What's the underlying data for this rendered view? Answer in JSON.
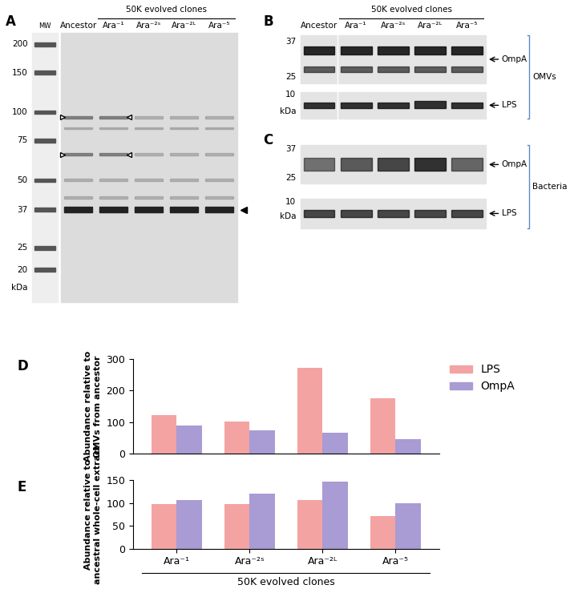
{
  "panels": {
    "A": {
      "panel": "A",
      "mw_label": "MW",
      "mw_markers": [
        200,
        150,
        100,
        75,
        50,
        37,
        25,
        20
      ],
      "unit": "kDa",
      "ancestor": "Ancestor",
      "group": "50K evolved clones",
      "lanes": [
        "Ara⁻¹",
        "Ara⁻²ˢ",
        "Ara⁻²ᴸ",
        "Ara⁻⁵"
      ]
    },
    "B": {
      "panel": "B",
      "ancestor": "Ancestor",
      "group": "50K evolved clones",
      "lanes": [
        "Ara⁻¹",
        "Ara⁻²ˢ",
        "Ara⁻²ᴸ",
        "Ara⁻⁵"
      ],
      "mw_markers": [
        37,
        25,
        10
      ],
      "unit": "kDa",
      "bands": [
        "OmpA",
        "LPS"
      ],
      "fraction": "OMVs"
    },
    "C": {
      "panel": "C",
      "mw_markers": [
        37,
        25,
        10
      ],
      "unit": "kDa",
      "bands": [
        "OmpA",
        "LPS"
      ],
      "fraction": "Bacteria"
    }
  },
  "chart_data": [
    {
      "type": "bar",
      "panel": "D",
      "y_label": "Abundance relative to\nOMVs from ancestor",
      "categories": [
        "Ara⁻¹",
        "Ara⁻²ˢ",
        "Ara⁻²ᴸ",
        "Ara⁻⁵"
      ],
      "series": [
        {
          "name": "LPS",
          "color": "#f4a3a3",
          "values": [
            122,
            101,
            272,
            175
          ]
        },
        {
          "name": "OmpA",
          "color": "#a99bd3",
          "values": [
            90,
            74,
            65,
            45
          ]
        }
      ],
      "ylim": [
        0,
        300
      ],
      "yticks": [
        0,
        100,
        200,
        300
      ],
      "legend": "upper right",
      "tick_labels": "y"
    },
    {
      "type": "bar",
      "panel": "E",
      "y_label": "Abundance relative to\nancestral whole-cell extract",
      "x_label": "50K evolved clones",
      "categories": [
        "Ara⁻¹",
        "Ara⁻²ˢ",
        "Ara⁻²ᴸ",
        "Ara⁻⁵"
      ],
      "series": [
        {
          "name": "LPS",
          "color": "#f4a3a3",
          "values": [
            98,
            97,
            106,
            72
          ]
        },
        {
          "name": "OmpA",
          "color": "#a99bd3",
          "values": [
            106,
            120,
            148,
            99
          ]
        }
      ],
      "ylim": [
        0,
        150
      ],
      "yticks": [
        0,
        50,
        100,
        150
      ]
    }
  ]
}
